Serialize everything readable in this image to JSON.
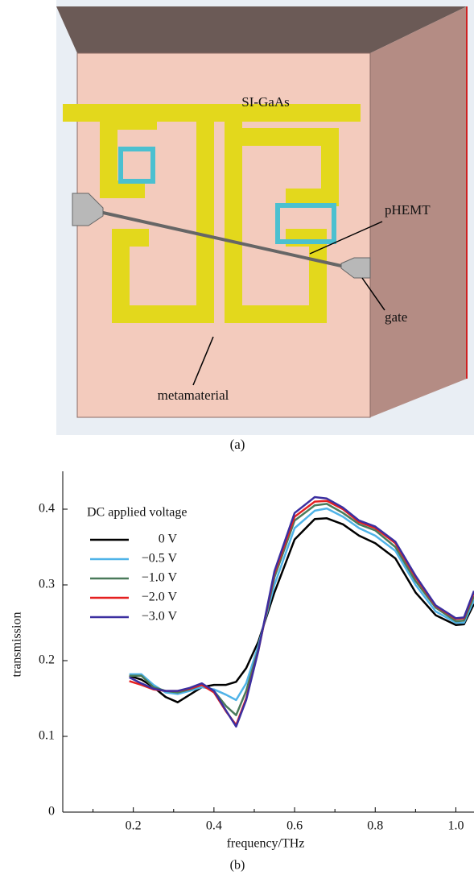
{
  "diagram": {
    "labels": {
      "substrate": "SI-GaAs",
      "transistor": "pHEMT",
      "gate": "gate",
      "metamaterial": "metamaterial"
    },
    "caption": "(a)"
  },
  "chart_data": {
    "type": "line",
    "caption": "(b)",
    "x_label": "frequency/THz",
    "y_label": "transmission",
    "legend_title": "DC applied voltage",
    "x": [
      0.19,
      0.22,
      0.25,
      0.28,
      0.31,
      0.34,
      0.37,
      0.4,
      0.43,
      0.455,
      0.48,
      0.51,
      0.55,
      0.6,
      0.65,
      0.68,
      0.72,
      0.76,
      0.8,
      0.85,
      0.9,
      0.95,
      1.0,
      1.02,
      1.045
    ],
    "series": [
      {
        "name": "0 V",
        "color": "#000000",
        "values": [
          0.18,
          0.175,
          0.165,
          0.152,
          0.145,
          0.155,
          0.165,
          0.168,
          0.168,
          0.172,
          0.19,
          0.225,
          0.29,
          0.36,
          0.387,
          0.388,
          0.38,
          0.365,
          0.355,
          0.335,
          0.29,
          0.26,
          0.247,
          0.248,
          0.275
        ]
      },
      {
        "name": "−0.5 V",
        "color": "#4fb3e8",
        "values": [
          0.182,
          0.182,
          0.168,
          0.158,
          0.156,
          0.16,
          0.165,
          0.162,
          0.155,
          0.148,
          0.17,
          0.22,
          0.3,
          0.375,
          0.398,
          0.401,
          0.39,
          0.375,
          0.365,
          0.345,
          0.3,
          0.265,
          0.25,
          0.25,
          0.28
        ]
      },
      {
        "name": "−1.0 V",
        "color": "#4a7a5a",
        "values": [
          0.18,
          0.18,
          0.165,
          0.16,
          0.158,
          0.162,
          0.168,
          0.16,
          0.14,
          0.128,
          0.16,
          0.215,
          0.31,
          0.385,
          0.405,
          0.407,
          0.395,
          0.38,
          0.372,
          0.35,
          0.305,
          0.27,
          0.252,
          0.253,
          0.285
        ]
      },
      {
        "name": "−2.0 V",
        "color": "#e52020",
        "values": [
          0.173,
          0.168,
          0.162,
          0.16,
          0.16,
          0.163,
          0.168,
          0.158,
          0.133,
          0.115,
          0.15,
          0.213,
          0.315,
          0.39,
          0.41,
          0.411,
          0.4,
          0.383,
          0.375,
          0.355,
          0.31,
          0.272,
          0.255,
          0.256,
          0.29
        ]
      },
      {
        "name": "−3.0 V",
        "color": "#3b2fa0",
        "values": [
          0.178,
          0.17,
          0.163,
          0.16,
          0.16,
          0.164,
          0.17,
          0.16,
          0.134,
          0.113,
          0.148,
          0.213,
          0.318,
          0.395,
          0.416,
          0.414,
          0.402,
          0.385,
          0.377,
          0.357,
          0.312,
          0.273,
          0.256,
          0.257,
          0.292
        ]
      }
    ],
    "xlim": [
      0.025,
      1.045
    ],
    "ylim": [
      0,
      0.45
    ],
    "xticks": [
      0.2,
      0.4,
      0.6,
      0.8,
      {
        "value": 1,
        "label": "1.0"
      }
    ],
    "xminorticks": [
      0.1,
      0.3,
      0.5,
      0.7,
      0.9
    ],
    "yticks": [
      0,
      0.1,
      0.2,
      0.3,
      0.4
    ],
    "grid": false
  }
}
